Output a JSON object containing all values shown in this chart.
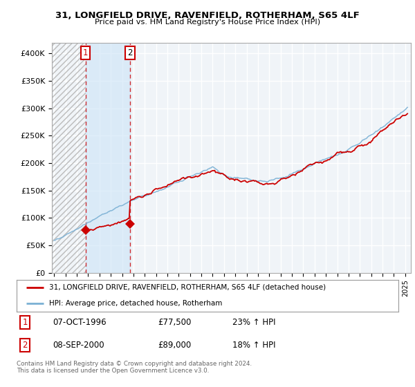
{
  "title": "31, LONGFIELD DRIVE, RAVENFIELD, ROTHERHAM, S65 4LF",
  "subtitle": "Price paid vs. HM Land Registry's House Price Index (HPI)",
  "ylim": [
    0,
    420000
  ],
  "yticks": [
    0,
    50000,
    100000,
    150000,
    200000,
    250000,
    300000,
    350000,
    400000
  ],
  "ytick_labels": [
    "£0",
    "£50K",
    "£100K",
    "£150K",
    "£200K",
    "£250K",
    "£300K",
    "£350K",
    "£400K"
  ],
  "xlim_start": 1993.8,
  "xlim_end": 2025.5,
  "sale1_date": 1996.77,
  "sale1_price": 77500,
  "sale1_label": "1",
  "sale2_date": 2000.69,
  "sale2_price": 89000,
  "sale2_label": "2",
  "line_color_property": "#cc0000",
  "line_color_hpi": "#7ab0d4",
  "legend_entry1": "31, LONGFIELD DRIVE, RAVENFIELD, ROTHERHAM, S65 4LF (detached house)",
  "legend_entry2": "HPI: Average price, detached house, Rotherham",
  "table_row1": [
    "1",
    "07-OCT-1996",
    "£77,500",
    "23% ↑ HPI"
  ],
  "table_row2": [
    "2",
    "08-SEP-2000",
    "£89,000",
    "18% ↑ HPI"
  ],
  "footnote": "Contains HM Land Registry data © Crown copyright and database right 2024.\nThis data is licensed under the Open Government Licence v3.0.",
  "background_color": "#ffffff",
  "plot_bg_color": "#f0f4f8",
  "grid_color": "#ffffff",
  "hatch_color": "#cccccc",
  "shade_color": "#ddeeff"
}
